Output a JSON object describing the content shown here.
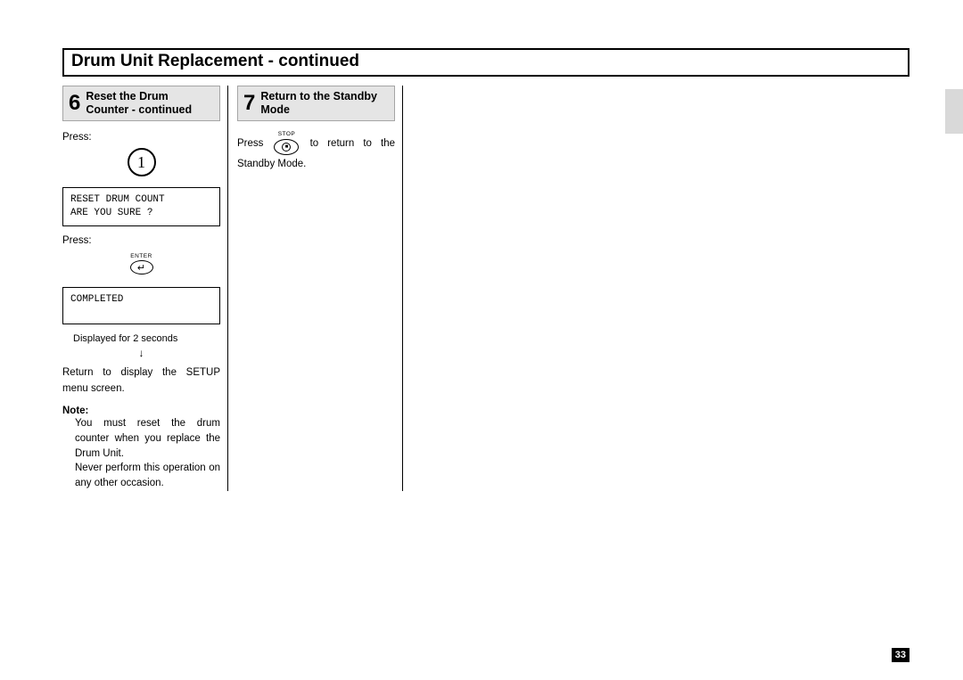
{
  "page": {
    "title": "Drum Unit Replacement - continued",
    "number": "33"
  },
  "step6": {
    "num": "6",
    "title": "Reset the Drum Counter - continued",
    "press1": "Press:",
    "btn1": "1",
    "lcd1": "RESET DRUM COUNT\nARE YOU SURE ?",
    "press2": "Press:",
    "enter_label": "ENTER",
    "enter_glyph": "↵",
    "lcd2": "COMPLETED",
    "caption": "Displayed for 2 seconds",
    "arrow": "↓",
    "return_text": "Return to display the SETUP menu screen.",
    "note_label": "Note:",
    "note_body1": "You must reset the drum counter when you replace the Drum Unit.",
    "note_body2": "Never perform this operation on any other occasion."
  },
  "step7": {
    "num": "7",
    "title": "Return to the Standby Mode",
    "text_pre": "Press",
    "stop_label": "STOP",
    "text_post": "to return to the Standby Mode."
  },
  "colors": {
    "header_bg": "#e5e5e5",
    "header_border": "#a5a5a5",
    "text": "#000000",
    "badge_bg": "#000000",
    "badge_fg": "#ffffff"
  }
}
